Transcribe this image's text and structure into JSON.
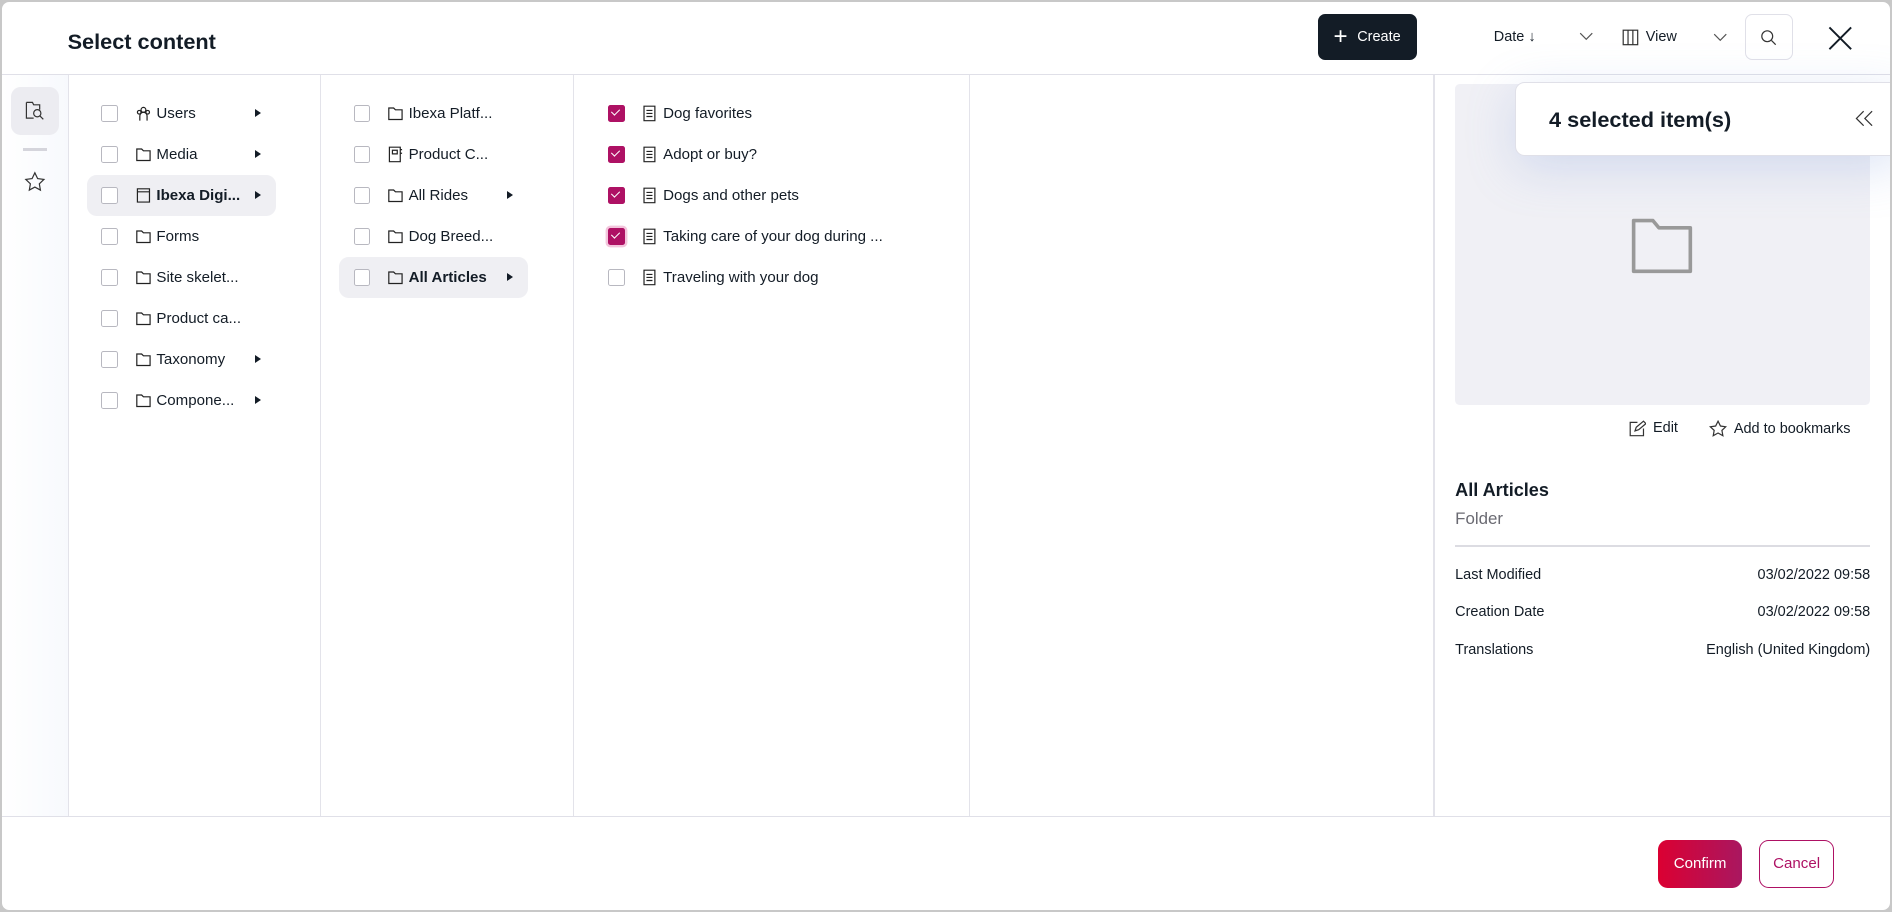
{
  "header": {
    "title": "Select content",
    "create_label": "Create",
    "sort_label": "Date ↓",
    "view_label": "View"
  },
  "columns": [
    {
      "items": [
        {
          "label": "Users",
          "icon": "users-icon",
          "checked": false,
          "expandable": true
        },
        {
          "label": "Media",
          "icon": "folder-icon",
          "checked": false,
          "expandable": true
        },
        {
          "label": "Ibexa Digi...",
          "icon": "landing-page-icon",
          "checked": false,
          "expandable": true,
          "active": true
        },
        {
          "label": "Forms",
          "icon": "folder-icon",
          "checked": false,
          "expandable": false
        },
        {
          "label": "Site skelet...",
          "icon": "folder-icon",
          "checked": false,
          "expandable": false
        },
        {
          "label": "Product ca...",
          "icon": "folder-icon",
          "checked": false,
          "expandable": false
        },
        {
          "label": "Taxonomy",
          "icon": "folder-icon",
          "checked": false,
          "expandable": true
        },
        {
          "label": "Compone...",
          "icon": "folder-icon",
          "checked": false,
          "expandable": true
        }
      ]
    },
    {
      "items": [
        {
          "label": "Ibexa Platf...",
          "icon": "folder-icon",
          "checked": false,
          "expandable": false
        },
        {
          "label": "Product C...",
          "icon": "catalog-icon",
          "checked": false,
          "expandable": false
        },
        {
          "label": "All Rides",
          "icon": "folder-icon",
          "checked": false,
          "expandable": true
        },
        {
          "label": "Dog Breed...",
          "icon": "folder-icon",
          "checked": false,
          "expandable": false
        },
        {
          "label": "All Articles",
          "icon": "folder-icon",
          "checked": false,
          "expandable": true,
          "active": true
        }
      ]
    },
    {
      "items": [
        {
          "label": "Dog favorites",
          "icon": "article-icon",
          "checked": true
        },
        {
          "label": "Adopt or buy?",
          "icon": "article-icon",
          "checked": true
        },
        {
          "label": "Dogs and other pets",
          "icon": "article-icon",
          "checked": true
        },
        {
          "label": "Taking care of your dog during ...",
          "icon": "article-icon",
          "checked": true,
          "focused": true
        },
        {
          "label": "Traveling with your dog",
          "icon": "article-icon",
          "checked": false
        }
      ]
    }
  ],
  "selection": {
    "count_label": "4 selected item(s)"
  },
  "details": {
    "edit_label": "Edit",
    "bookmark_label": "Add to bookmarks",
    "name": "All Articles",
    "type": "Folder",
    "meta": [
      {
        "label": "Last Modified",
        "value": "03/02/2022 09:58"
      },
      {
        "label": "Creation Date",
        "value": "03/02/2022 09:58"
      },
      {
        "label": "Translations",
        "value": "English (United Kingdom)"
      }
    ]
  },
  "footer": {
    "confirm_label": "Confirm",
    "cancel_label": "Cancel"
  },
  "colors": {
    "accent": "#ae1164",
    "dark": "#131c26"
  }
}
